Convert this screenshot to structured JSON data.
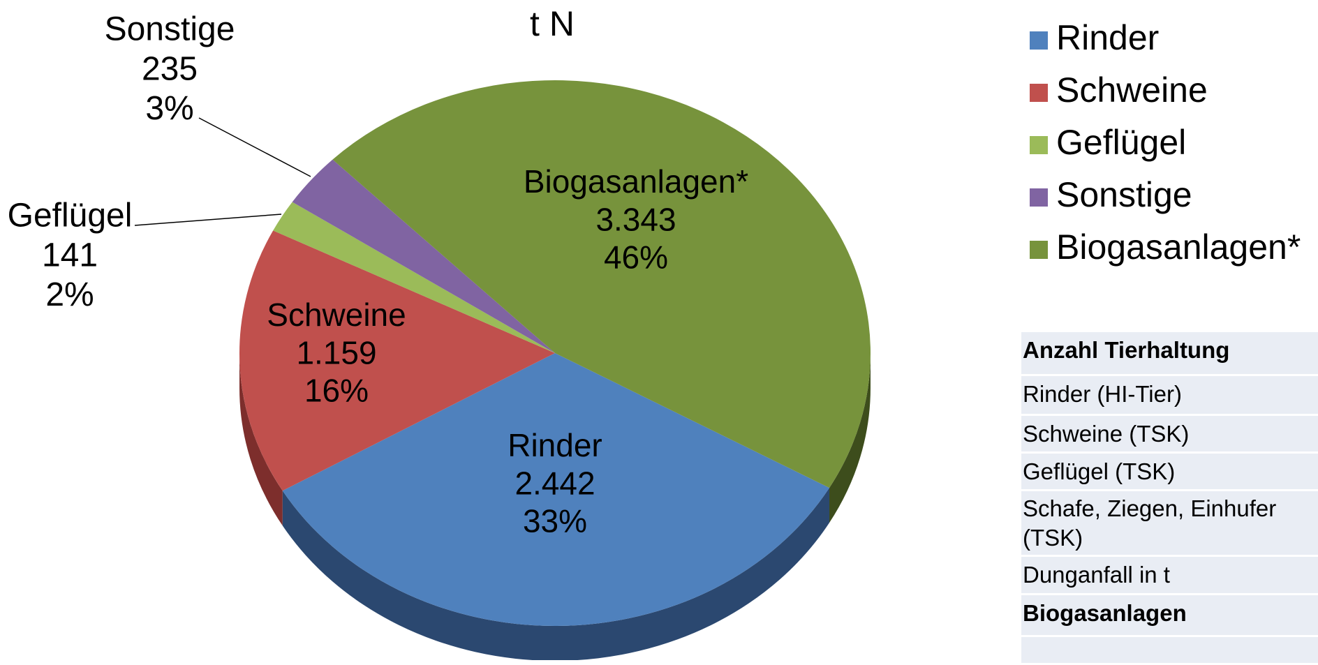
{
  "chart_data": {
    "type": "pie",
    "title": "t N",
    "categories": [
      "Rinder",
      "Schweine",
      "Geflügel",
      "Sonstige",
      "Biogasanlagen*"
    ],
    "values": [
      2442,
      1159,
      141,
      235,
      3343
    ],
    "value_labels": [
      "2.442",
      "1.159",
      "141",
      "235",
      "3.343"
    ],
    "percent_labels": [
      "33%",
      "16%",
      "2%",
      "3%",
      "46%"
    ],
    "colors": [
      "#4f81bd",
      "#c0504d",
      "#9bbb59",
      "#8064a2",
      "#77933c"
    ],
    "side_colors": [
      "#2b4870",
      "#7d2e2c",
      "#5f7a33",
      "#4f3c68",
      "#3d4d1c"
    ],
    "legend": "right"
  },
  "table": {
    "rows": [
      "Anzahl Tierhaltung",
      "Rinder (HI-Tier)",
      "Schweine (TSK)",
      "Geflügel (TSK)",
      "Schafe, Ziegen, Einhufer (TSK)",
      "Dunganfall in t",
      "Biogasanlagen"
    ]
  }
}
